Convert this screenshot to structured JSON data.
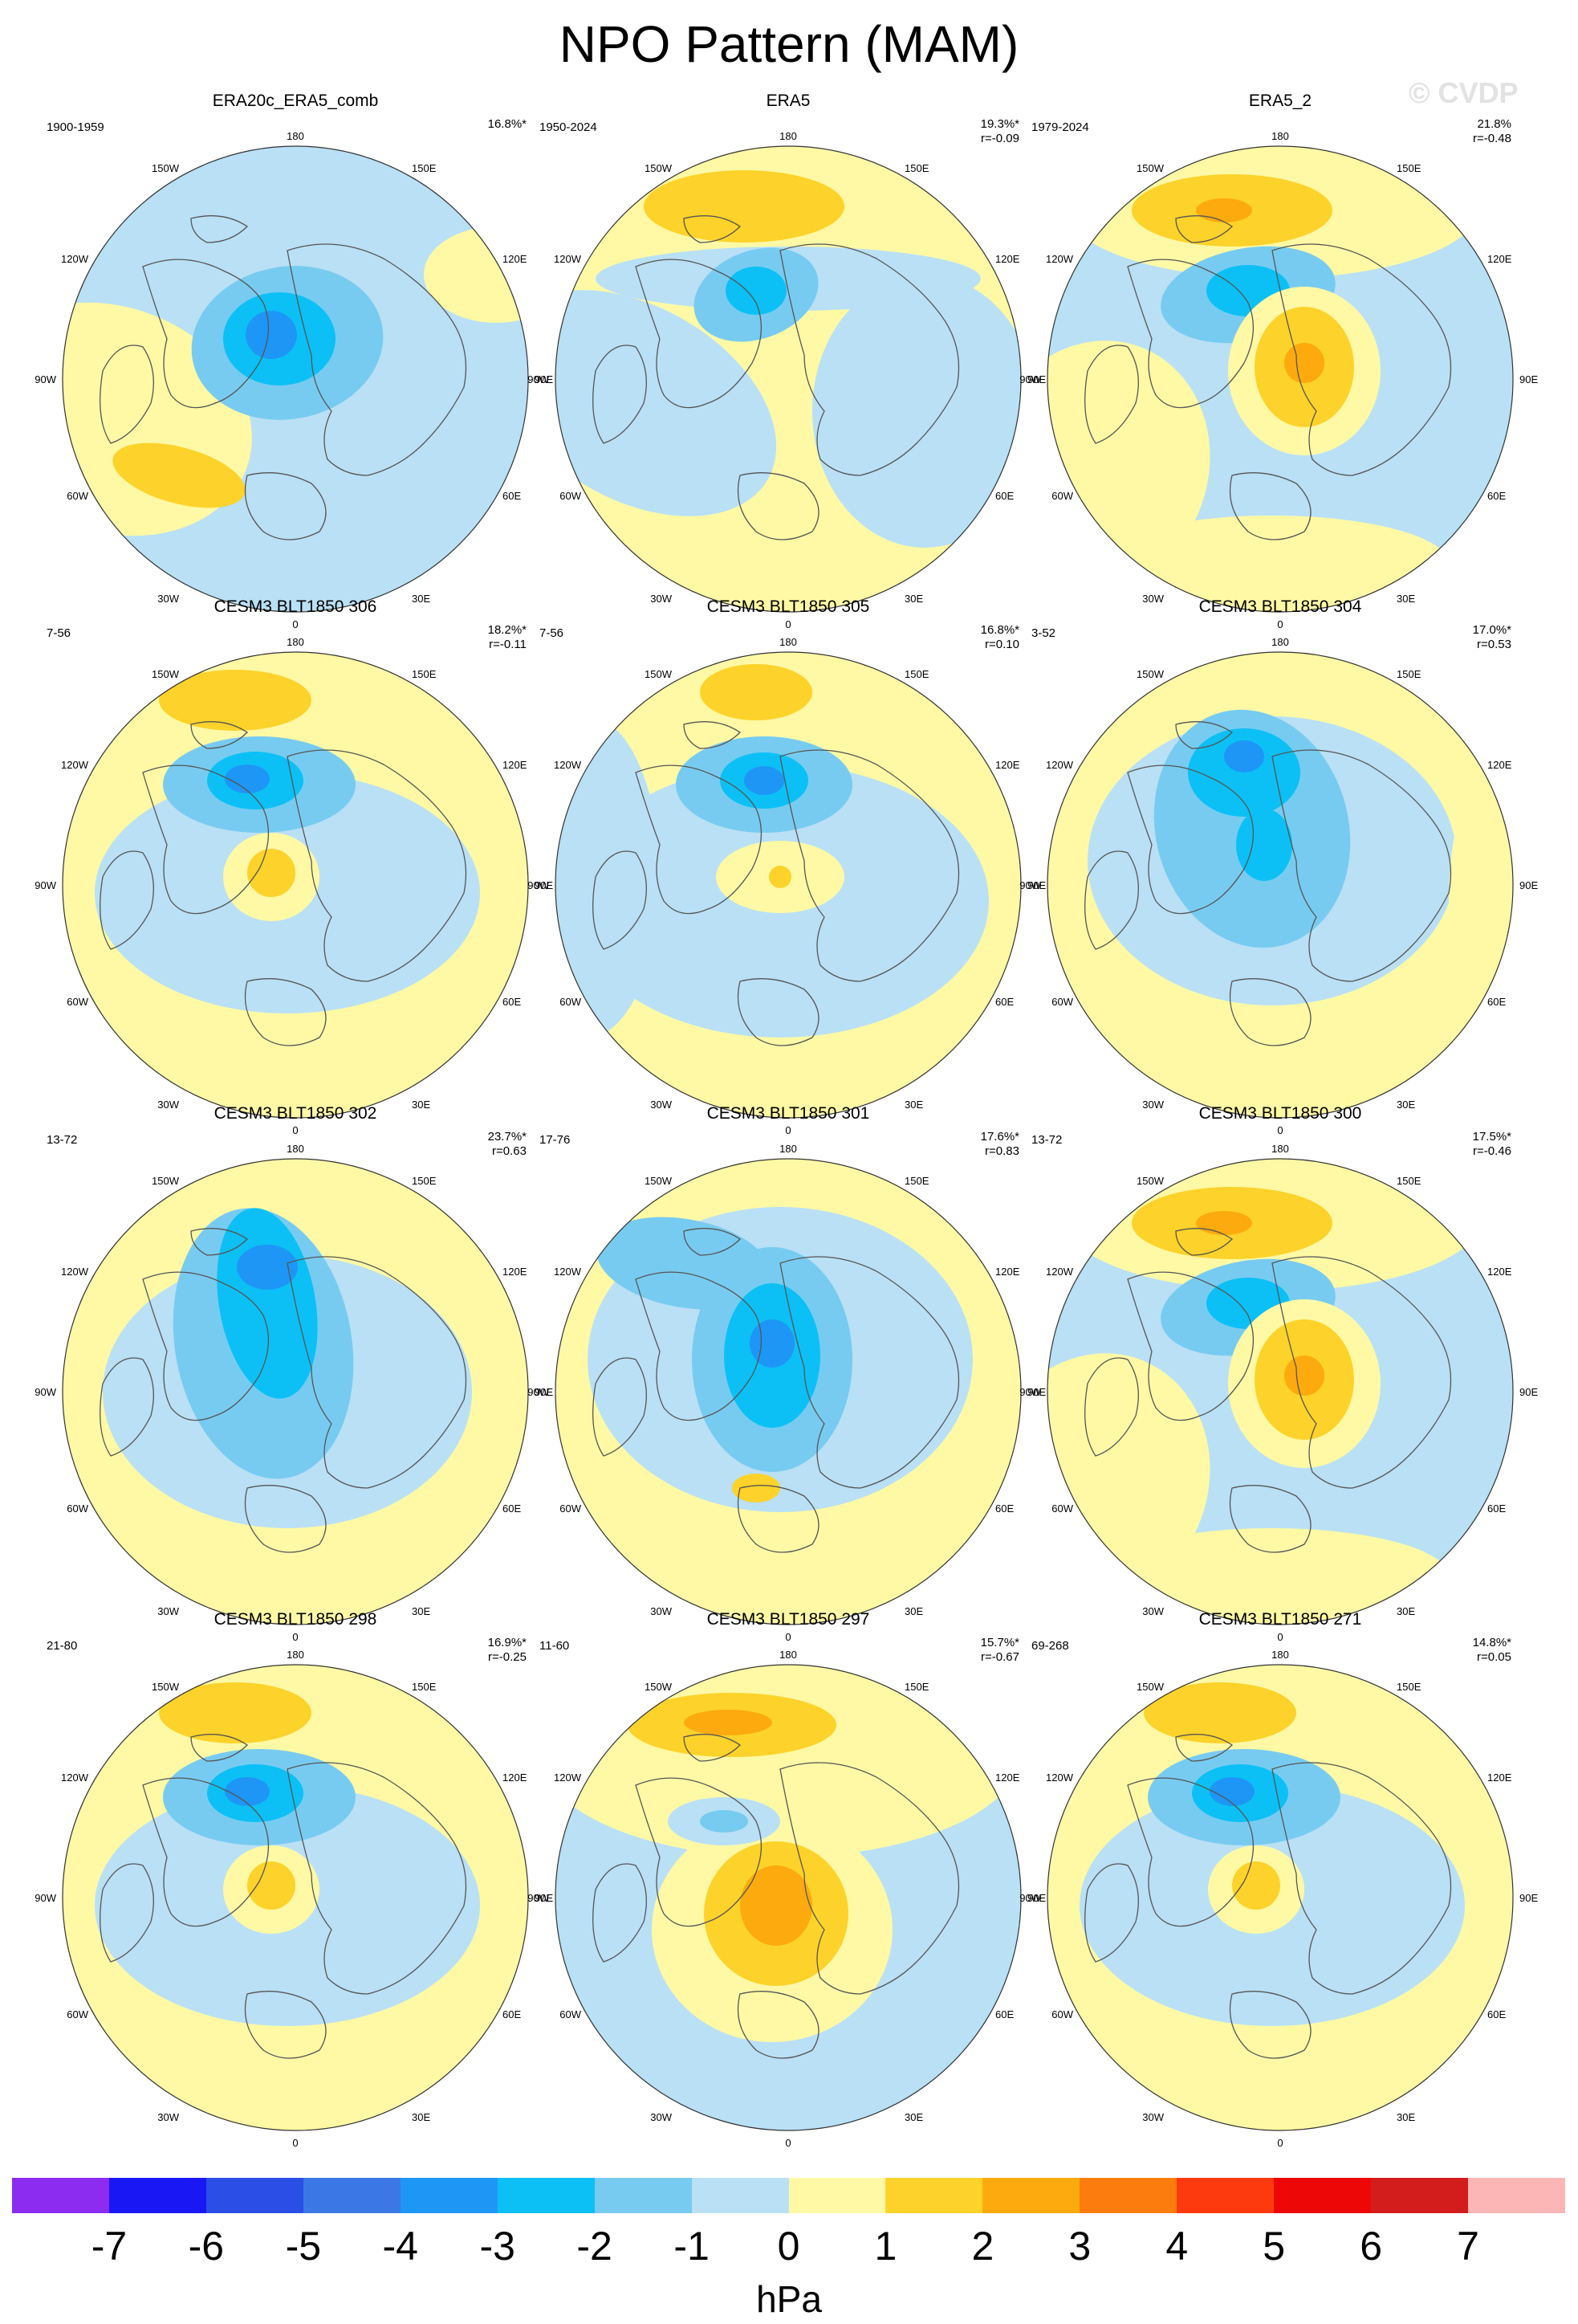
{
  "title": "NPO Pattern (MAM)",
  "watermark": "© CVDP",
  "map_labels": {
    "180": "180",
    "150E": "150E",
    "120E": "120E",
    "90E": "90E",
    "60E": "60E",
    "30E": "30E",
    "0": "0",
    "30W": "30W",
    "60W": "60W",
    "90W": "90W",
    "120W": "120W",
    "150W": "150W"
  },
  "panels": [
    {
      "title": "ERA20c_ERA5_comb",
      "years": "1900-1959",
      "pct": "16.8%*",
      "r": "",
      "pattern": "pac_neg_atl_pos"
    },
    {
      "title": "ERA5",
      "years": "1950-2024",
      "pct": "19.3%*",
      "r": "r=-0.09",
      "pattern": "ref"
    },
    {
      "title": "ERA5_2",
      "years": "1979-2024",
      "pct": "21.8%",
      "r": "r=-0.48",
      "pattern": "dipole_strong"
    },
    {
      "title": "CESM3 BLT1850 306",
      "years": "7-56",
      "pct": "18.2%*",
      "r": "r=-0.11",
      "pattern": "dipole"
    },
    {
      "title": "CESM3 BLT1850 305",
      "years": "7-56",
      "pct": "16.8%*",
      "r": "r=0.10",
      "pattern": "dipole_weak"
    },
    {
      "title": "CESM3 BLT1850 304",
      "years": "3-52",
      "pct": "17.0%*",
      "r": "r=0.53",
      "pattern": "neg_center"
    },
    {
      "title": "CESM3 BLT1850 302",
      "years": "13-72",
      "pct": "23.7%*",
      "r": "r=0.63",
      "pattern": "neg_arctic"
    },
    {
      "title": "CESM3 BLT1850 301",
      "years": "17-76",
      "pct": "17.6%*",
      "r": "r=0.83",
      "pattern": "neg_arctic2"
    },
    {
      "title": "CESM3 BLT1850 300",
      "years": "13-72",
      "pct": "17.5%*",
      "r": "r=-0.46",
      "pattern": "dipole_strong"
    },
    {
      "title": "CESM3 BLT1850 298",
      "years": "21-80",
      "pct": "16.9%*",
      "r": "r=-0.25",
      "pattern": "dipole"
    },
    {
      "title": "CESM3 BLT1850 297",
      "years": "11-60",
      "pct": "15.7%*",
      "r": "r=-0.67",
      "pattern": "dipole_big"
    },
    {
      "title": "CESM3 BLT1850 271",
      "years": "69-268",
      "pct": "14.8%*",
      "r": "r=0.05",
      "pattern": "dipole"
    }
  ],
  "colorbar": {
    "colors": [
      "#8b2cf0",
      "#1a17f5",
      "#2a4ee6",
      "#3b78e6",
      "#1e96f5",
      "#0cc0f5",
      "#78cbf0",
      "#b9e0f5",
      "#fff9a5",
      "#fdd22a",
      "#fcaa0e",
      "#fd7c0e",
      "#fc3a0e",
      "#ee0707",
      "#d31c1c",
      "#fdb6b6"
    ],
    "ticks": [
      "-7",
      "-6",
      "-5",
      "-4",
      "-3",
      "-2",
      "-1",
      "0",
      "1",
      "2",
      "3",
      "4",
      "5",
      "6",
      "7"
    ],
    "units": "hPa"
  }
}
